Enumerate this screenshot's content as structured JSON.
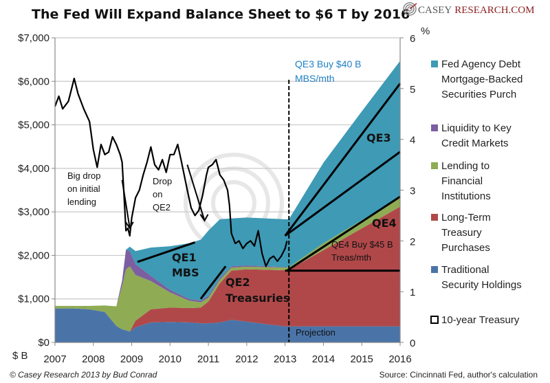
{
  "chart_data": {
    "type": "area",
    "title": "The Fed Will Expand Balance Sheet to $6 T by 2016",
    "xlabel": "",
    "ylabel": "$ B",
    "y2label": "%",
    "xlim": [
      2007,
      2016
    ],
    "ylim": [
      0,
      7000
    ],
    "y2lim": [
      0,
      6
    ],
    "x_ticks": [
      "2007",
      "2008",
      "2009",
      "2010",
      "2011",
      "2012",
      "2013",
      "2014",
      "2015",
      "2016"
    ],
    "y_ticks": [
      "$0",
      "$1,000",
      "$2,000",
      "$3,000",
      "$4,000",
      "$5,000",
      "$6,000",
      "$7,000"
    ],
    "y2_ticks": [
      "0",
      "1",
      "2",
      "3",
      "4",
      "5",
      "6"
    ],
    "grid": true,
    "legend_position": "right",
    "x": [
      2007.0,
      2007.5,
      2007.9,
      2008.3,
      2008.6,
      2008.75,
      2008.85,
      2008.95,
      2009.1,
      2009.5,
      2010.0,
      2010.5,
      2010.8,
      2011.0,
      2011.3,
      2011.6,
      2012.0,
      2012.5,
      2013.0,
      2013.1,
      2014.0,
      2015.0,
      2016.0
    ],
    "series": [
      {
        "name": "Traditional Security Holdings",
        "color": "#4a74a8",
        "values": [
          780,
          780,
          760,
          700,
          380,
          300,
          280,
          250,
          350,
          460,
          470,
          460,
          440,
          440,
          460,
          520,
          480,
          420,
          370,
          370,
          370,
          370,
          370
        ]
      },
      {
        "name": "Long-Term Treasury Purchases",
        "color": "#b0484a",
        "values": [
          0,
          0,
          0,
          0,
          0,
          0,
          0,
          0,
          150,
          300,
          330,
          330,
          360,
          500,
          900,
          1130,
          1200,
          1250,
          1290,
          1300,
          1750,
          2250,
          2750
        ]
      },
      {
        "name": "Lending to Financial Institutions",
        "color": "#8fab54",
        "values": [
          60,
          60,
          80,
          150,
          450,
          1000,
          1400,
          1500,
          1050,
          650,
          350,
          170,
          120,
          90,
          80,
          70,
          60,
          60,
          60,
          60,
          160,
          190,
          220
        ]
      },
      {
        "name": "Liquidity to Key Credit Markets",
        "color": "#7b5fa0",
        "values": [
          0,
          0,
          0,
          0,
          0,
          120,
          450,
          350,
          250,
          120,
          60,
          40,
          40,
          40,
          40,
          30,
          30,
          20,
          10,
          0,
          0,
          0,
          0
        ]
      },
      {
        "name": "Fed Agency Debt Mortgage-Backed Securities Purch",
        "color": "#3e9ab5",
        "values": [
          0,
          0,
          0,
          0,
          0,
          0,
          0,
          100,
          300,
          650,
          1000,
          1280,
          1400,
          1500,
          1350,
          1100,
          1100,
          1100,
          1100,
          1100,
          1850,
          2500,
          3130
        ]
      }
    ],
    "line_series": {
      "name": "10-year Treasury",
      "axis": "right",
      "color": "#000000",
      "x": [
        2007.0,
        2007.1,
        2007.2,
        2007.35,
        2007.5,
        2007.6,
        2007.75,
        2007.9,
        2008.0,
        2008.1,
        2008.2,
        2008.3,
        2008.4,
        2008.5,
        2008.6,
        2008.7,
        2008.75,
        2008.8,
        2008.85,
        2008.9,
        2008.95,
        2009.0,
        2009.1,
        2009.2,
        2009.3,
        2009.4,
        2009.5,
        2009.6,
        2009.7,
        2009.8,
        2009.9,
        2010.0,
        2010.1,
        2010.2,
        2010.3,
        2010.45,
        2010.55,
        2010.65,
        2010.75,
        2010.85,
        2010.95,
        2011.0,
        2011.1,
        2011.2,
        2011.3,
        2011.4,
        2011.5,
        2011.55,
        2011.6,
        2011.7,
        2011.8,
        2011.9,
        2012.0,
        2012.1,
        2012.2,
        2012.3,
        2012.4,
        2012.5,
        2012.6,
        2012.7,
        2012.8,
        2012.9,
        2013.0,
        2013.05
      ],
      "values": [
        4.65,
        4.85,
        4.6,
        4.75,
        5.2,
        4.9,
        4.6,
        4.35,
        3.8,
        3.45,
        3.9,
        3.7,
        3.75,
        4.05,
        3.9,
        3.7,
        3.55,
        2.9,
        2.2,
        2.25,
        2.1,
        2.45,
        2.85,
        3.0,
        3.3,
        3.55,
        3.85,
        3.5,
        3.4,
        3.6,
        3.35,
        3.7,
        3.7,
        3.9,
        3.55,
        3.0,
        2.65,
        2.5,
        2.6,
        2.9,
        3.3,
        3.45,
        3.5,
        3.6,
        3.3,
        3.2,
        3.0,
        2.7,
        2.15,
        1.95,
        2.0,
        1.85,
        1.95,
        2.0,
        1.9,
        2.2,
        1.75,
        1.5,
        1.65,
        1.7,
        1.6,
        1.7,
        1.85,
        2.0
      ]
    },
    "annotations": {
      "big_drop": [
        "Big drop",
        "on initial",
        "lending"
      ],
      "drop_qe2": [
        "Drop",
        "on",
        "QE2"
      ],
      "qe1": [
        "QE1",
        "MBS"
      ],
      "qe2": [
        "QE2",
        "Treasuries"
      ],
      "qe3": "QE3",
      "qe4": "QE4",
      "qe3_buy": [
        "QE3 Buy $40 B",
        "MBS/mth"
      ],
      "qe4_buy": [
        "QE4 Buy $45 B",
        "Treas/mth"
      ],
      "projection": "Projection"
    },
    "legend": [
      {
        "label": [
          "Fed Agency Debt",
          "Mortgage-Backed",
          "Securities Purch"
        ],
        "color": "#3e9ab5",
        "marker": "square"
      },
      {
        "label": [
          "Liquidity to Key",
          "Credit Markets"
        ],
        "color": "#7b5fa0",
        "marker": "square"
      },
      {
        "label": [
          "Lending to",
          "Financial",
          "Institutions"
        ],
        "color": "#8fab54",
        "marker": "square"
      },
      {
        "label": [
          "Long-Term",
          "Treasury",
          "Purchases"
        ],
        "color": "#b0484a",
        "marker": "square"
      },
      {
        "label": [
          "Traditional",
          "Security Holdings"
        ],
        "color": "#4a74a8",
        "marker": "square"
      },
      {
        "label": [
          "10-year Treasury"
        ],
        "color": "#000000",
        "marker": "outline"
      }
    ],
    "projection_start": 2013.1
  },
  "logo": {
    "part1": "Casey",
    "part2": "Research.com"
  },
  "footer": {
    "left": "© Casey Research 2013 by Bud Conrad",
    "right": "Source: Cincinnati Fed, author's calculation"
  }
}
